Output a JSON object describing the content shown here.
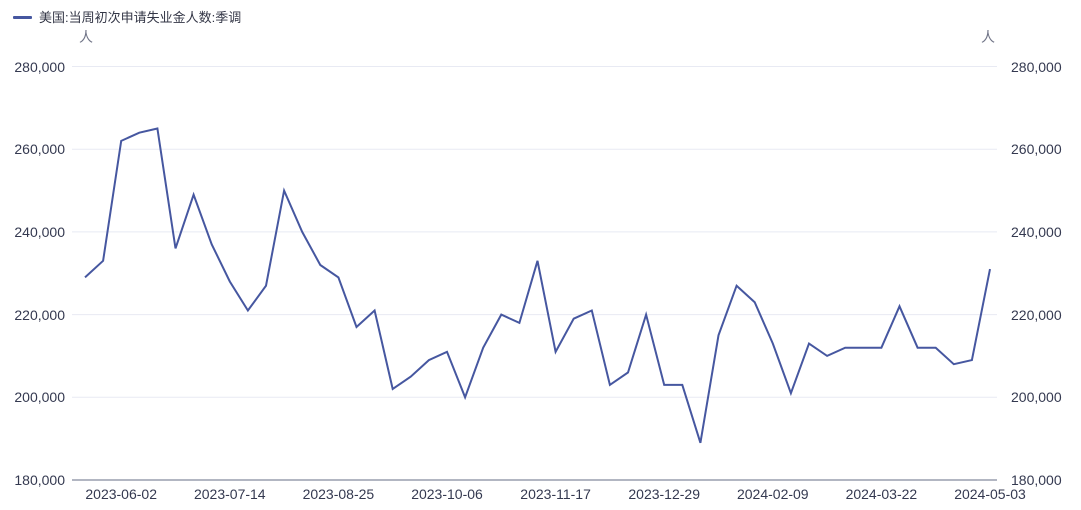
{
  "legend": {
    "label": "美国:当周初次申请失业金人数:季调"
  },
  "colors": {
    "line": "#4657a0",
    "text": "#343950",
    "grid": "#e8eaf3",
    "axis": "#666c84",
    "unit_text": "#707487",
    "background": "#ffffff"
  },
  "chart_data": {
    "type": "line",
    "title": "",
    "unit_left": "人",
    "unit_right": "人",
    "legend": [
      "美国:当周初次申请失业金人数:季调"
    ],
    "legend_position": "top-left",
    "grid": true,
    "ylim": [
      180000,
      280000
    ],
    "y_tick_labels": [
      "280,000",
      "260,000",
      "240,000",
      "220,000",
      "200,000",
      "180,000"
    ],
    "x_tick_labels": [
      "2023-06-02",
      "2023-07-14",
      "2023-08-25",
      "2023-10-06",
      "2023-11-17",
      "2023-12-29",
      "2024-02-09",
      "2024-03-22",
      "2024-05-03"
    ],
    "x": [
      "2023-05-19",
      "2023-05-26",
      "2023-06-02",
      "2023-06-09",
      "2023-06-16",
      "2023-06-23",
      "2023-06-30",
      "2023-07-07",
      "2023-07-14",
      "2023-07-21",
      "2023-07-28",
      "2023-08-04",
      "2023-08-11",
      "2023-08-18",
      "2023-08-25",
      "2023-09-01",
      "2023-09-08",
      "2023-09-15",
      "2023-09-22",
      "2023-09-29",
      "2023-10-06",
      "2023-10-13",
      "2023-10-20",
      "2023-10-27",
      "2023-11-03",
      "2023-11-10",
      "2023-11-17",
      "2023-11-24",
      "2023-12-01",
      "2023-12-08",
      "2023-12-15",
      "2023-12-22",
      "2023-12-29",
      "2024-01-05",
      "2024-01-12",
      "2024-01-19",
      "2024-01-26",
      "2024-02-02",
      "2024-02-09",
      "2024-02-16",
      "2024-02-23",
      "2024-03-01",
      "2024-03-08",
      "2024-03-15",
      "2024-03-22",
      "2024-03-29",
      "2024-04-05",
      "2024-04-12",
      "2024-04-19",
      "2024-04-26",
      "2024-05-03"
    ],
    "series": [
      {
        "name": "美国:当周初次申请失业金人数:季调",
        "color": "#4657a0",
        "values": [
          229000,
          233000,
          262000,
          264000,
          265000,
          236000,
          249000,
          237000,
          228000,
          221000,
          227000,
          250000,
          240000,
          232000,
          229000,
          217000,
          221000,
          202000,
          205000,
          209000,
          211000,
          200000,
          212000,
          220000,
          218000,
          233000,
          211000,
          219000,
          221000,
          203000,
          206000,
          220000,
          203000,
          203000,
          189000,
          215000,
          227000,
          223000,
          213000,
          201000,
          213000,
          210000,
          212000,
          212000,
          212000,
          222000,
          212000,
          212000,
          208000,
          209000,
          231000
        ]
      }
    ]
  }
}
